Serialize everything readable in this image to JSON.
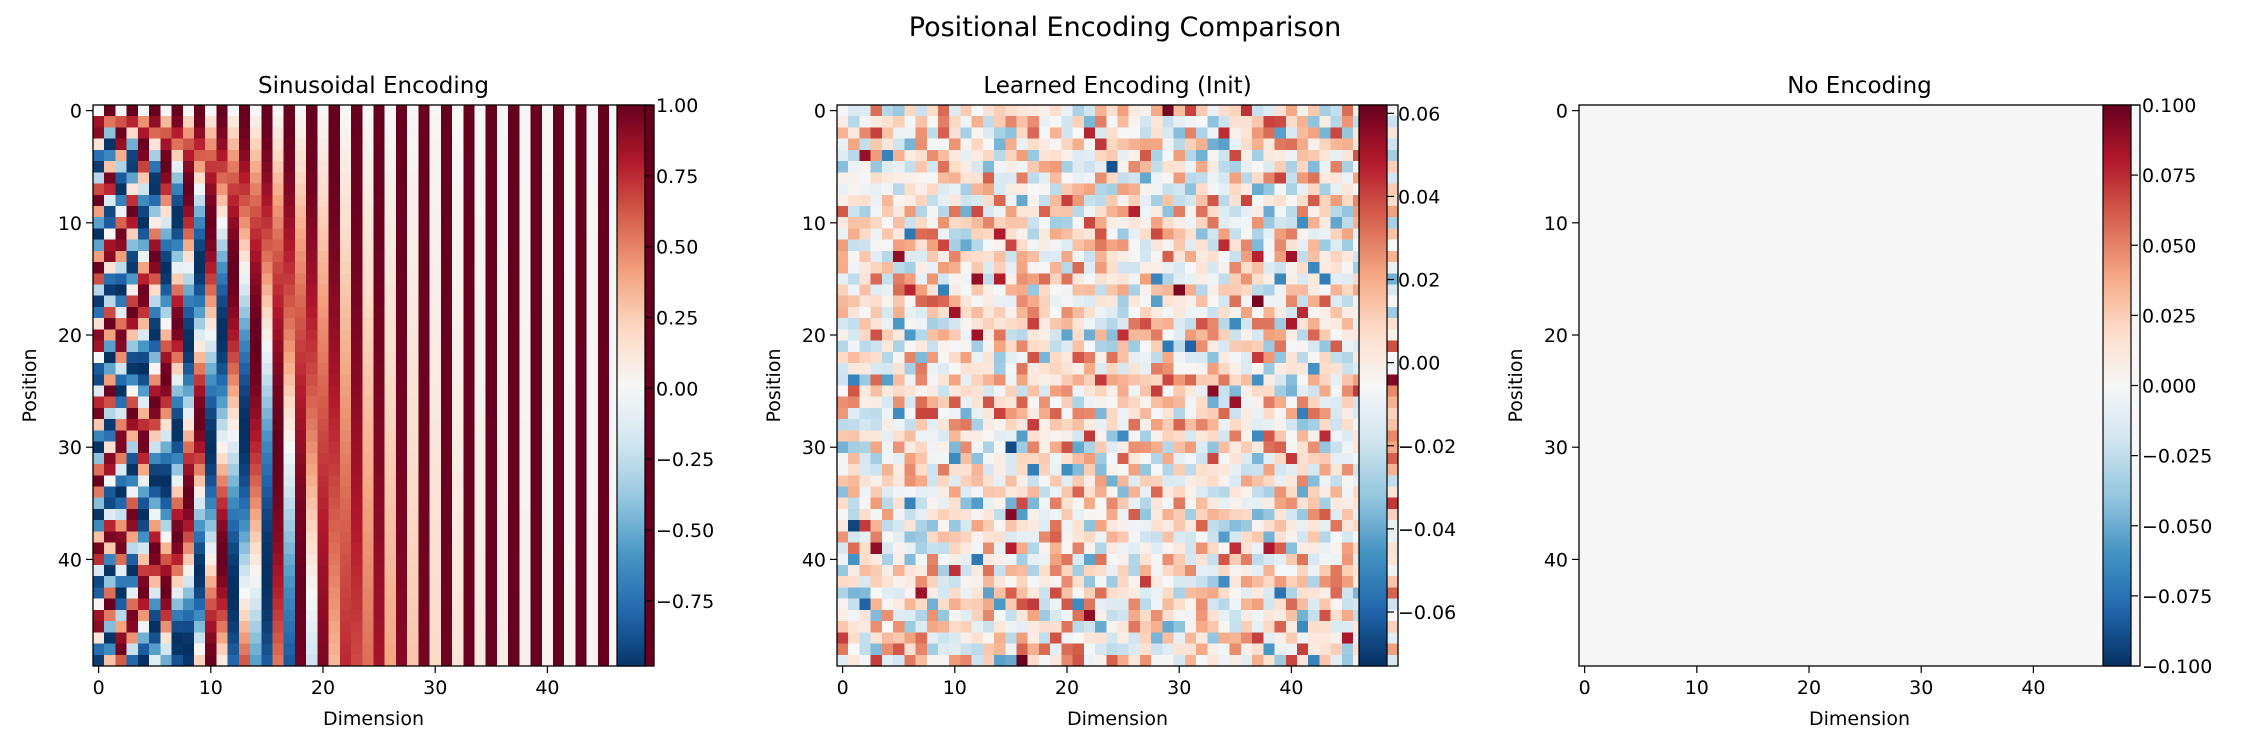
{
  "figure": {
    "title": "Positional Encoding Comparison"
  },
  "chart_data": [
    {
      "type": "heatmap",
      "title": "Sinusoidal Encoding",
      "xlabel": "Dimension",
      "ylabel": "Position",
      "rows": 50,
      "cols": 50,
      "x_ticks": [
        0,
        10,
        20,
        30,
        40
      ],
      "y_ticks": [
        0,
        10,
        20,
        30,
        40
      ],
      "colormap": "RdBu_r",
      "value_range": [
        -1.0,
        1.0
      ],
      "colorbar_ticks": [
        "1.00",
        "0.75",
        "0.50",
        "0.25",
        "0.00",
        "−0.25",
        "−0.50",
        "−0.75"
      ],
      "colorbar_tick_values": [
        1.0,
        0.75,
        0.5,
        0.25,
        0.0,
        -0.25,
        -0.5,
        -0.75
      ],
      "colorbar_range": [
        -0.98,
        1.0
      ],
      "values_description": "sinusoidal positional encoding: sin(pos / 10000^(2i/50)) on even dims, cos on odd dims"
    },
    {
      "type": "heatmap",
      "title": "Learned Encoding (Init)",
      "xlabel": "Dimension",
      "ylabel": "Position",
      "rows": 50,
      "cols": 50,
      "x_ticks": [
        0,
        10,
        20,
        30,
        40
      ],
      "y_ticks": [
        0,
        10,
        20,
        30,
        40
      ],
      "colormap": "RdBu_r",
      "value_range": [
        -0.073,
        0.062
      ],
      "colorbar_ticks": [
        "0.06",
        "0.04",
        "0.02",
        "0.00",
        "−0.02",
        "−0.04",
        "−0.06"
      ],
      "colorbar_tick_values": [
        0.06,
        0.04,
        0.02,
        0.0,
        -0.02,
        -0.04,
        -0.06
      ],
      "colorbar_range": [
        -0.073,
        0.062
      ],
      "values_description": "random normal initialization, std approximately 0.02"
    },
    {
      "type": "heatmap",
      "title": "No Encoding",
      "xlabel": "Dimension",
      "ylabel": "Position",
      "rows": 50,
      "cols": 50,
      "x_ticks": [
        0,
        10,
        20,
        30,
        40
      ],
      "y_ticks": [
        0,
        10,
        20,
        30,
        40
      ],
      "colormap": "RdBu_r",
      "value_range": [
        -0.1,
        0.1
      ],
      "colorbar_ticks": [
        "0.100",
        "0.075",
        "0.050",
        "0.025",
        "0.000",
        "−0.025",
        "−0.050",
        "−0.075",
        "−0.100"
      ],
      "colorbar_tick_values": [
        0.1,
        0.075,
        0.05,
        0.025,
        0.0,
        -0.025,
        -0.05,
        -0.075,
        -0.1
      ],
      "colorbar_range": [
        -0.1,
        0.1
      ],
      "values_description": "all zeros"
    }
  ]
}
